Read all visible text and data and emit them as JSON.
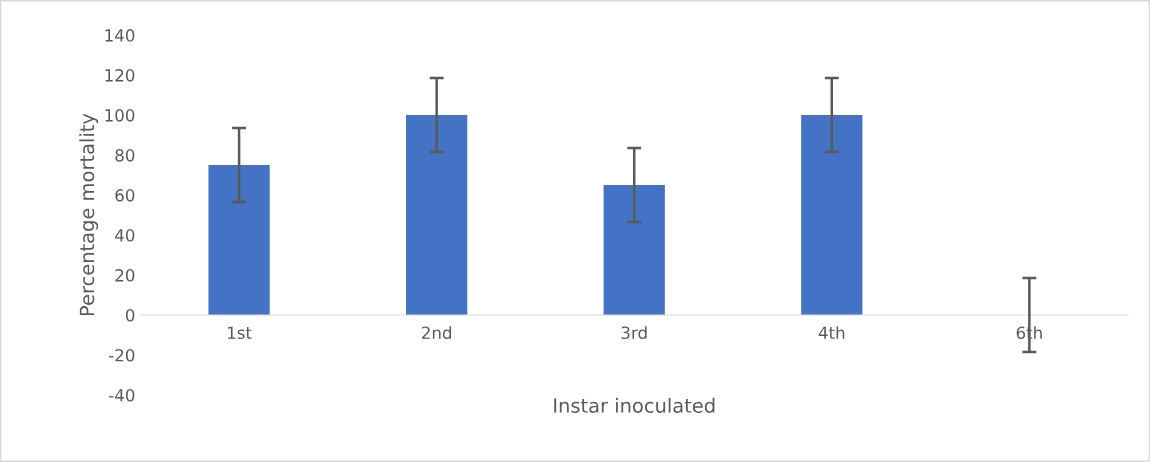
{
  "chart_data": {
    "type": "bar",
    "xlabel": "Instar inoculated",
    "ylabel": "Percentage mortality",
    "categories": [
      "1st",
      "2nd",
      "3rd",
      "4th",
      "6th"
    ],
    "values": [
      75,
      100,
      65,
      100,
      0
    ],
    "errors": [
      18.5,
      18.5,
      18.5,
      18.5,
      18.5
    ],
    "color": "#4472c4",
    "ylim": [
      -40,
      140
    ],
    "yticks": [
      -40,
      -20,
      0,
      20,
      40,
      60,
      80,
      100,
      120,
      140
    ],
    "grid": false,
    "legend": false
  }
}
